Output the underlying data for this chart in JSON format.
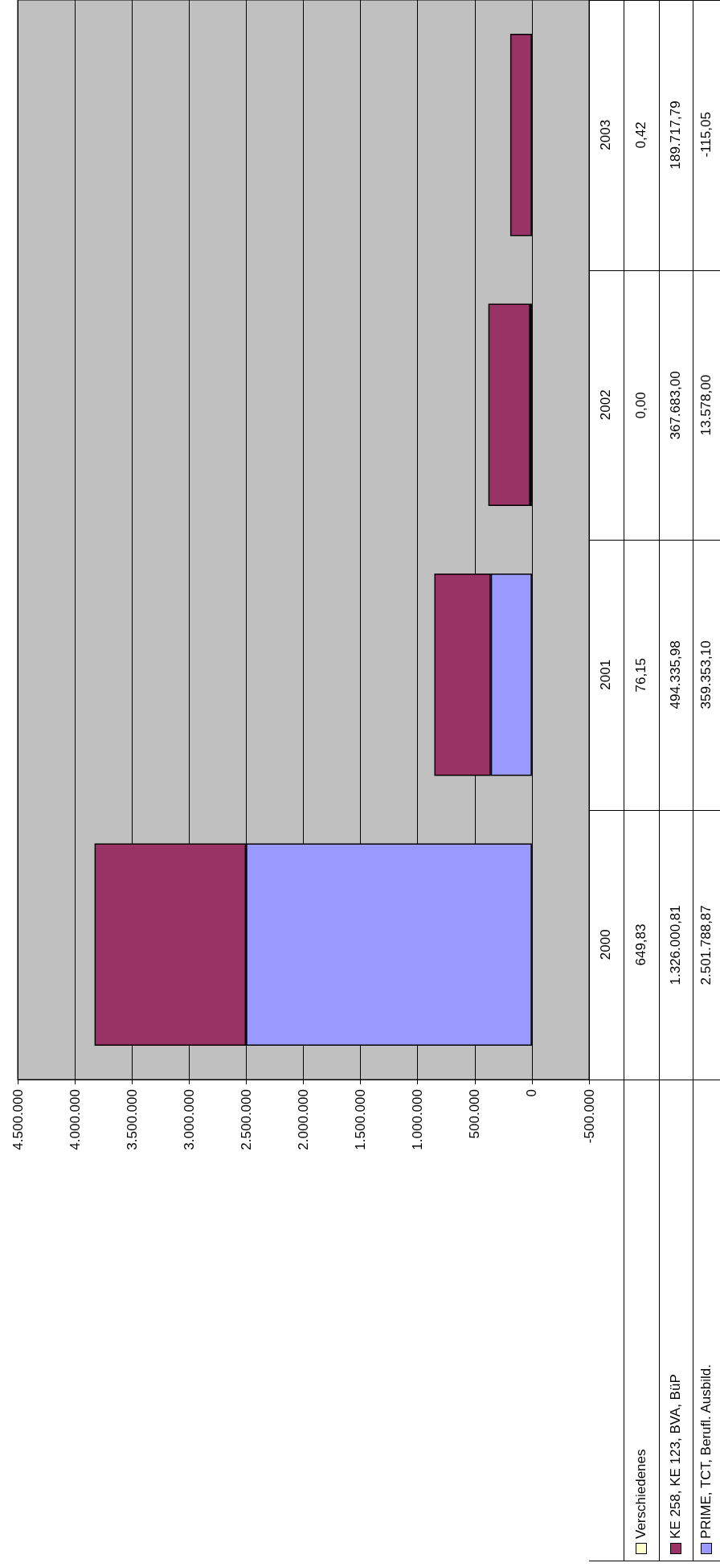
{
  "chart_data": {
    "type": "bar",
    "stacked": true,
    "orientation": "horizontal",
    "categories": [
      "2003",
      "2002",
      "2001",
      "2000"
    ],
    "series": [
      {
        "name": "PRIME, TCT, Berufl. Ausbild.",
        "color": "#9999ff",
        "values": [
          -115.05,
          13578.0,
          359353.1,
          2501788.87
        ],
        "value_labels": [
          "-115,05",
          "13.578,00",
          "359.353,10",
          "2.501.788,87"
        ]
      },
      {
        "name": "KE 258, KE 123, BVA, BüP",
        "color": "#993366",
        "values": [
          189717.79,
          367683.0,
          494335.98,
          1326000.81
        ],
        "value_labels": [
          "189.717,79",
          "367.683,00",
          "494.335,98",
          "1.326.000,81"
        ]
      },
      {
        "name": "Verschiedenes",
        "color": "#ffffcc",
        "values": [
          0.42,
          0.0,
          76.15,
          649.83
        ],
        "value_labels": [
          "0,42",
          "0,00",
          "76,15",
          "649,83"
        ]
      }
    ],
    "xlim": [
      4500000,
      -500000
    ],
    "xticks": [
      {
        "value": 4500000,
        "label": "4.500.000"
      },
      {
        "value": 4000000,
        "label": "4.000.000"
      },
      {
        "value": 3500000,
        "label": "3.500.000"
      },
      {
        "value": 3000000,
        "label": "3.000.000"
      },
      {
        "value": 2500000,
        "label": "2.500.000"
      },
      {
        "value": 2000000,
        "label": "2.000.000"
      },
      {
        "value": 1500000,
        "label": "1.500.000"
      },
      {
        "value": 1000000,
        "label": "1.000.000"
      },
      {
        "value": 500000,
        "label": "500.000"
      },
      {
        "value": 0,
        "label": "0"
      },
      {
        "value": -500000,
        "label": "-500.000"
      }
    ],
    "grid": "x",
    "legend": "bottom right"
  }
}
